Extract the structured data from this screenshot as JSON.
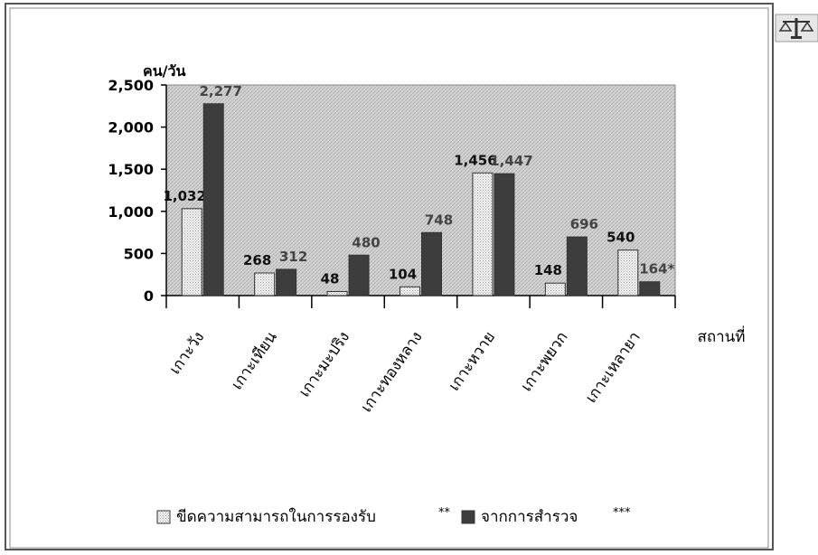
{
  "chart_data": {
    "type": "bar",
    "ylabel": "คน/วัน",
    "xlabel": "สถานที่",
    "ylim": [
      0,
      2500
    ],
    "yticks": [
      0,
      500,
      1000,
      1500,
      2000,
      2500
    ],
    "ytick_labels": [
      "0",
      "500",
      "1,000",
      "1,500",
      "2,000",
      "2,500"
    ],
    "categories": [
      "เกาะวัง",
      "เกาะเทียน",
      "เกาะมะปริง",
      "เกาะทองหลาง",
      "เกาะหวาย",
      "เกาะพยวก",
      "เกาะเหลายา"
    ],
    "series": [
      {
        "name": "ขีดความสามารถในการรองรับ",
        "legend_suffix": "**",
        "pattern": "dotted-light",
        "values": [
          1032,
          268,
          48,
          104,
          1456,
          148,
          540
        ],
        "labels": [
          "1,032",
          "268",
          "48",
          "104",
          "1,456",
          "148",
          "540"
        ]
      },
      {
        "name": "จากการสำรวจ",
        "legend_suffix": "***",
        "color": "#3d3d3d",
        "values": [
          2277,
          312,
          480,
          748,
          1447,
          696,
          164
        ],
        "labels": [
          "2,277",
          "312",
          "480",
          "748",
          "1,447",
          "696",
          "164*"
        ]
      }
    ],
    "plot_background": "hatched-grey",
    "grid": false,
    "legend_position": "bottom"
  },
  "frame": {
    "corner_icon": "scales-icon"
  }
}
